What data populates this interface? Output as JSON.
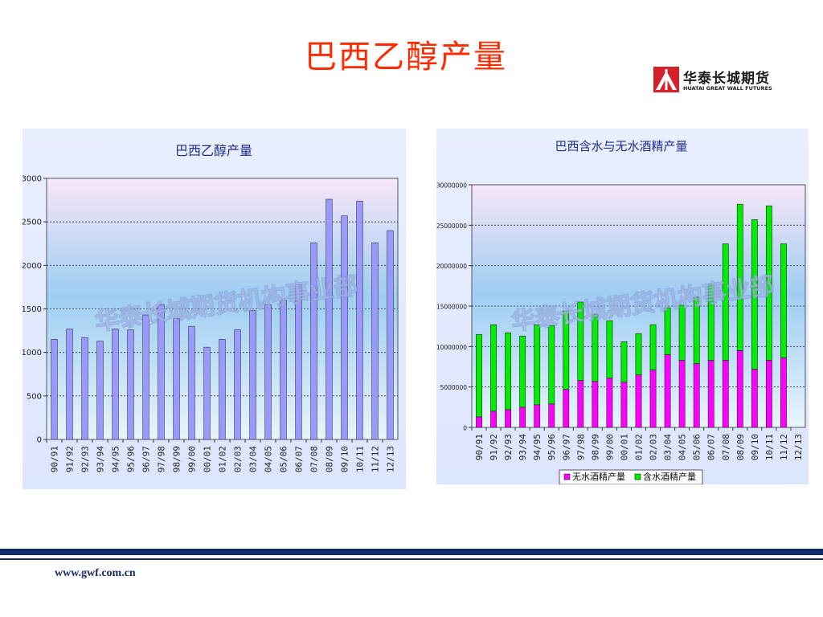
{
  "slide": {
    "title": "巴西乙醇产量",
    "footer_url": "www.gwf.com.cn"
  },
  "logo": {
    "name": "华泰长城期货",
    "subtitle": "HUATAI GREAT WALL FUTURES",
    "icon": "huatai-logo-icon",
    "color": "#d6202a"
  },
  "watermark": "华泰长城期货机构事业部",
  "colors": {
    "title": "#ff2b00",
    "bar_blue": "#9999ff",
    "anhydrous": "#ff00ff",
    "hydrous": "#00ee00",
    "footer_bar": "#0e2a6b"
  },
  "chart_data": [
    {
      "type": "bar",
      "title": "巴西乙醇产量",
      "xlabel": "",
      "ylabel": "",
      "categories": [
        "90/91",
        "91/92",
        "92/93",
        "93/94",
        "94/95",
        "95/96",
        "96/97",
        "97/98",
        "98/99",
        "99/00",
        "00/01",
        "01/02",
        "02/03",
        "03/04",
        "04/05",
        "05/06",
        "06/07",
        "07/08",
        "08/09",
        "09/10",
        "10/11",
        "11/12",
        "12/13"
      ],
      "values": [
        1150,
        1270,
        1170,
        1130,
        1270,
        1260,
        1430,
        1550,
        1390,
        1300,
        1060,
        1150,
        1260,
        1480,
        1550,
        1600,
        1780,
        2260,
        2760,
        2570,
        2740,
        2260,
        2400
      ],
      "ylim": [
        0,
        3000
      ],
      "yticks": [
        "0",
        "500",
        "1000",
        "1500",
        "2000",
        "2500",
        "3000"
      ],
      "ytick_values": [
        0,
        500,
        1000,
        1500,
        2000,
        2500,
        3000
      ],
      "grid": true,
      "legend": "none"
    },
    {
      "type": "bar",
      "stacked": true,
      "title": "巴西含水与无水酒精产量",
      "xlabel": "",
      "ylabel": "",
      "categories": [
        "90/91",
        "91/92",
        "92/93",
        "93/94",
        "94/95",
        "95/96",
        "96/97",
        "97/98",
        "98/99",
        "99/00",
        "00/01",
        "01/02",
        "02/03",
        "03/04",
        "04/05",
        "05/06",
        "06/07",
        "07/08",
        "08/09",
        "09/10",
        "10/11",
        "11/12",
        "12/13"
      ],
      "series": [
        {
          "name": "无水酒精产量",
          "values": [
            1300000,
            2000000,
            2200000,
            2500000,
            2800000,
            2900000,
            4700000,
            5800000,
            5700000,
            6100000,
            5600000,
            6500000,
            7100000,
            9000000,
            8300000,
            7900000,
            8300000,
            8300000,
            9500000,
            7200000,
            8300000,
            8600000,
            0
          ]
        },
        {
          "name": "含水酒精产量",
          "values": [
            10200000,
            10700000,
            9500000,
            8800000,
            9900000,
            9700000,
            9700000,
            9700000,
            8300000,
            7100000,
            5000000,
            5100000,
            5600000,
            5800000,
            6800000,
            8200000,
            9400000,
            14400000,
            18100000,
            18500000,
            19100000,
            14100000,
            0
          ]
        }
      ],
      "ylim": [
        0,
        30000000
      ],
      "yticks": [
        "0",
        "5000000",
        "10000000",
        "15000000",
        "20000000",
        "25000000",
        "30000000"
      ],
      "ytick_values": [
        0,
        5000000,
        10000000,
        15000000,
        20000000,
        25000000,
        30000000
      ],
      "grid": true,
      "legend": "bottom"
    }
  ]
}
